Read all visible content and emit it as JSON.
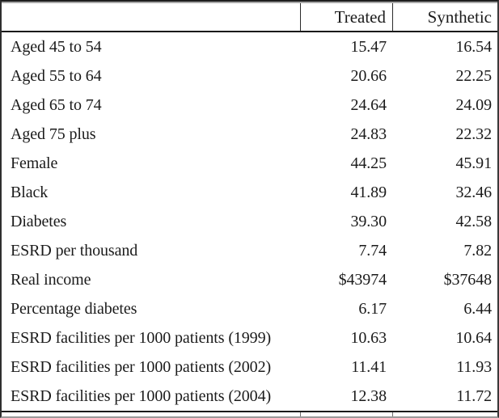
{
  "table": {
    "columns": [
      "",
      "Treated",
      "Synthetic"
    ],
    "rows": [
      {
        "label": "Aged 45 to 54",
        "treated": "15.47",
        "synthetic": "16.54"
      },
      {
        "label": "Aged 55 to 64",
        "treated": "20.66",
        "synthetic": "22.25"
      },
      {
        "label": "Aged 65 to 74",
        "treated": "24.64",
        "synthetic": "24.09"
      },
      {
        "label": "Aged 75 plus",
        "treated": "24.83",
        "synthetic": "22.32"
      },
      {
        "label": "Female",
        "treated": "44.25",
        "synthetic": "45.91"
      },
      {
        "label": "Black",
        "treated": "41.89",
        "synthetic": "32.46"
      },
      {
        "label": "Diabetes",
        "treated": "39.30",
        "synthetic": "42.58"
      },
      {
        "label": "ESRD per thousand",
        "treated": "7.74",
        "synthetic": "7.82"
      },
      {
        "label": "Real income",
        "treated": "$43974",
        "synthetic": "$37648"
      },
      {
        "label": "Percentage diabetes",
        "treated": "6.17",
        "synthetic": "6.44"
      },
      {
        "label": "ESRD facilities per 1000 patients (1999)",
        "treated": "10.63",
        "synthetic": "10.64"
      },
      {
        "label": "ESRD facilities per 1000 patients (2002)",
        "treated": "11.41",
        "synthetic": "11.93"
      },
      {
        "label": "ESRD facilities per 1000 patients (2004)",
        "treated": "12.38",
        "synthetic": "11.72"
      }
    ]
  },
  "colors": {
    "text": "#1b1b1b",
    "rule_black": "#1a1a1a",
    "frame_gray": "#9a9a9a",
    "background": "#ffffff"
  }
}
